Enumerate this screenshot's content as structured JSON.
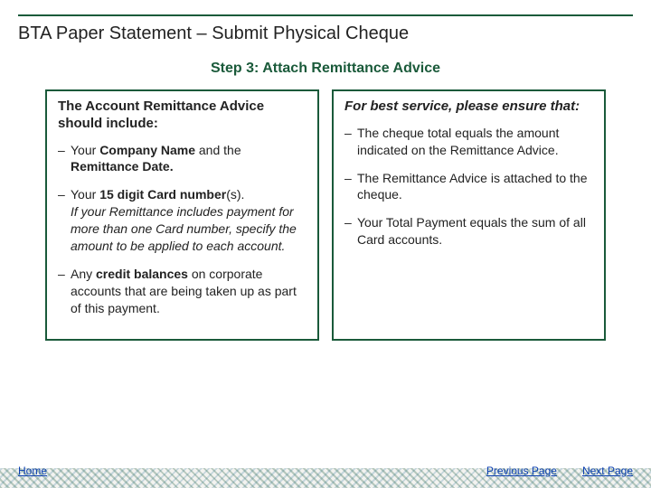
{
  "colors": {
    "accent": "#1a5a3a",
    "link": "#0b3fb0",
    "text": "#222222",
    "background": "#ffffff"
  },
  "title": "BTA Paper Statement – Submit Physical Cheque",
  "step_label": "Step 3:  Attach Remittance Advice",
  "left_box": {
    "heading": "The Account Remittance Advice should include:",
    "items": [
      {
        "segments": [
          {
            "text": "Your "
          },
          {
            "text": "Company Name",
            "bold": true
          },
          {
            "text": " and the "
          },
          {
            "text": "Remittance Date.",
            "bold": true
          }
        ]
      },
      {
        "segments": [
          {
            "text": "Your "
          },
          {
            "text": "15 digit Card number",
            "bold": true
          },
          {
            "text": "(s)."
          },
          {
            "text": " If your Remittance includes payment for more than one Card number, specify the amount to be applied to each account.",
            "italic": true,
            "break_before": true
          }
        ]
      },
      {
        "segments": [
          {
            "text": "Any "
          },
          {
            "text": "credit balances",
            "bold": true
          },
          {
            "text": " on corporate accounts that are being taken up as part of this payment."
          }
        ]
      }
    ]
  },
  "right_box": {
    "heading": "For best service, please ensure that:",
    "heading_italic": true,
    "items": [
      {
        "segments": [
          {
            "text": "The cheque total equals the amount indicated on the Remittance Advice."
          }
        ]
      },
      {
        "segments": [
          {
            "text": "The Remittance Advice is attached to the cheque."
          }
        ]
      },
      {
        "segments": [
          {
            "text": "Your Total Payment equals the sum of all Card accounts."
          }
        ]
      }
    ]
  },
  "footer": {
    "home": "Home",
    "prev": "Previous Page",
    "next": "Next Page"
  }
}
